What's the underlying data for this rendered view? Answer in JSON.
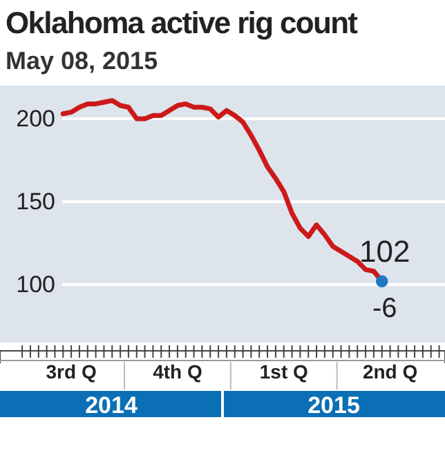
{
  "chart_data": {
    "type": "line",
    "title": "Oklahoma active rig count",
    "subtitle": "May 08, 2015",
    "x": [
      "2014-08-08",
      "2014-08-15",
      "2014-08-22",
      "2014-08-29",
      "2014-09-05",
      "2014-09-12",
      "2014-09-19",
      "2014-09-26",
      "2014-10-03",
      "2014-10-10",
      "2014-10-17",
      "2014-10-24",
      "2014-10-31",
      "2014-11-07",
      "2014-11-14",
      "2014-11-21",
      "2014-11-28",
      "2014-12-05",
      "2014-12-12",
      "2014-12-19",
      "2014-12-26",
      "2015-01-02",
      "2015-01-09",
      "2015-01-16",
      "2015-01-23",
      "2015-01-30",
      "2015-02-06",
      "2015-02-13",
      "2015-02-20",
      "2015-02-27",
      "2015-03-06",
      "2015-03-13",
      "2015-03-20",
      "2015-03-27",
      "2015-04-03",
      "2015-04-10",
      "2015-04-17",
      "2015-04-24",
      "2015-05-01",
      "2015-05-08"
    ],
    "series": [
      {
        "color": "#cc1a1a",
        "values": [
          203,
          204,
          207,
          209,
          209,
          210,
          211,
          208,
          207,
          200,
          200,
          202,
          202,
          205,
          208,
          209,
          207,
          207,
          206,
          201,
          205,
          202,
          198,
          190,
          181,
          171,
          164,
          156,
          143,
          134,
          129,
          136,
          130,
          123,
          120,
          117,
          114,
          109,
          108,
          102
        ]
      },
      {
        "type": "scatter",
        "color": "#1f78c1",
        "marker": "circle",
        "x": [
          "2015-05-08"
        ],
        "values": [
          102
        ]
      }
    ],
    "xlim": [
      "2014-06-15",
      "2015-07-01"
    ],
    "xticks": [
      {
        "value": "2014-07-04",
        "label": null
      },
      {
        "value": "2014-07-11",
        "label": null
      },
      {
        "value": "2014-07-18",
        "label": null
      },
      {
        "value": "2014-07-25",
        "label": null
      },
      {
        "value": "2014-08-01",
        "label": null
      },
      {
        "value": "2014-08-08",
        "label": null
      },
      {
        "value": "2014-08-15",
        "label": "3rd Q"
      },
      {
        "value": "2014-08-22",
        "label": null
      },
      {
        "value": "2014-08-29",
        "label": null
      },
      {
        "value": "2014-09-05",
        "label": null
      },
      {
        "value": "2014-09-12",
        "label": null
      },
      {
        "value": "2014-09-19",
        "label": null
      },
      {
        "value": "2014-09-26",
        "label": null
      },
      {
        "value": "2014-10-03",
        "label": null
      },
      {
        "value": "2014-10-10",
        "label": null
      },
      {
        "value": "2014-10-17",
        "label": null
      },
      {
        "value": "2014-10-24",
        "label": null
      },
      {
        "value": "2014-10-31",
        "label": null
      },
      {
        "value": "2014-11-07",
        "label": null
      },
      {
        "value": "2014-11-14",
        "label": "4th Q"
      },
      {
        "value": "2014-11-21",
        "label": null
      },
      {
        "value": "2014-11-28",
        "label": null
      },
      {
        "value": "2014-12-05",
        "label": null
      },
      {
        "value": "2014-12-12",
        "label": null
      },
      {
        "value": "2014-12-19",
        "label": null
      },
      {
        "value": "2014-12-26",
        "label": null
      },
      {
        "value": "2015-01-02",
        "label": null
      },
      {
        "value": "2015-01-09",
        "label": null
      },
      {
        "value": "2015-01-16",
        "label": null
      },
      {
        "value": "2015-01-23",
        "label": null
      },
      {
        "value": "2015-01-30",
        "label": null
      },
      {
        "value": "2015-02-06",
        "label": null
      },
      {
        "value": "2015-02-13",
        "label": "1st Q"
      },
      {
        "value": "2015-02-20",
        "label": null
      },
      {
        "value": "2015-02-27",
        "label": null
      },
      {
        "value": "2015-03-06",
        "label": null
      },
      {
        "value": "2015-03-13",
        "label": null
      },
      {
        "value": "2015-03-20",
        "label": null
      },
      {
        "value": "2015-03-27",
        "label": null
      },
      {
        "value": "2015-04-03",
        "label": null
      },
      {
        "value": "2015-04-10",
        "label": null
      },
      {
        "value": "2015-04-17",
        "label": null
      },
      {
        "value": "2015-04-24",
        "label": null
      },
      {
        "value": "2015-05-01",
        "label": null
      },
      {
        "value": "2015-05-08",
        "label": null
      },
      {
        "value": "2015-05-15",
        "label": "2nd Q"
      },
      {
        "value": "2015-05-22",
        "label": null
      },
      {
        "value": "2015-05-29",
        "label": null
      },
      {
        "value": "2015-06-05",
        "label": null
      },
      {
        "value": "2015-06-12",
        "label": null
      },
      {
        "value": "2015-06-19",
        "label": null
      },
      {
        "value": "2015-06-26",
        "label": null
      }
    ],
    "ylim": [
      65,
      220
    ],
    "yticks": [
      100,
      150,
      200
    ],
    "grid": "y",
    "line_style": "solid",
    "annotations": [
      {
        "text": "102",
        "x": "2015-05-08",
        "y": 102
      },
      {
        "text": "-6",
        "x": "2015-05-08",
        "y": 102
      },
      "2014",
      "2015"
    ]
  }
}
